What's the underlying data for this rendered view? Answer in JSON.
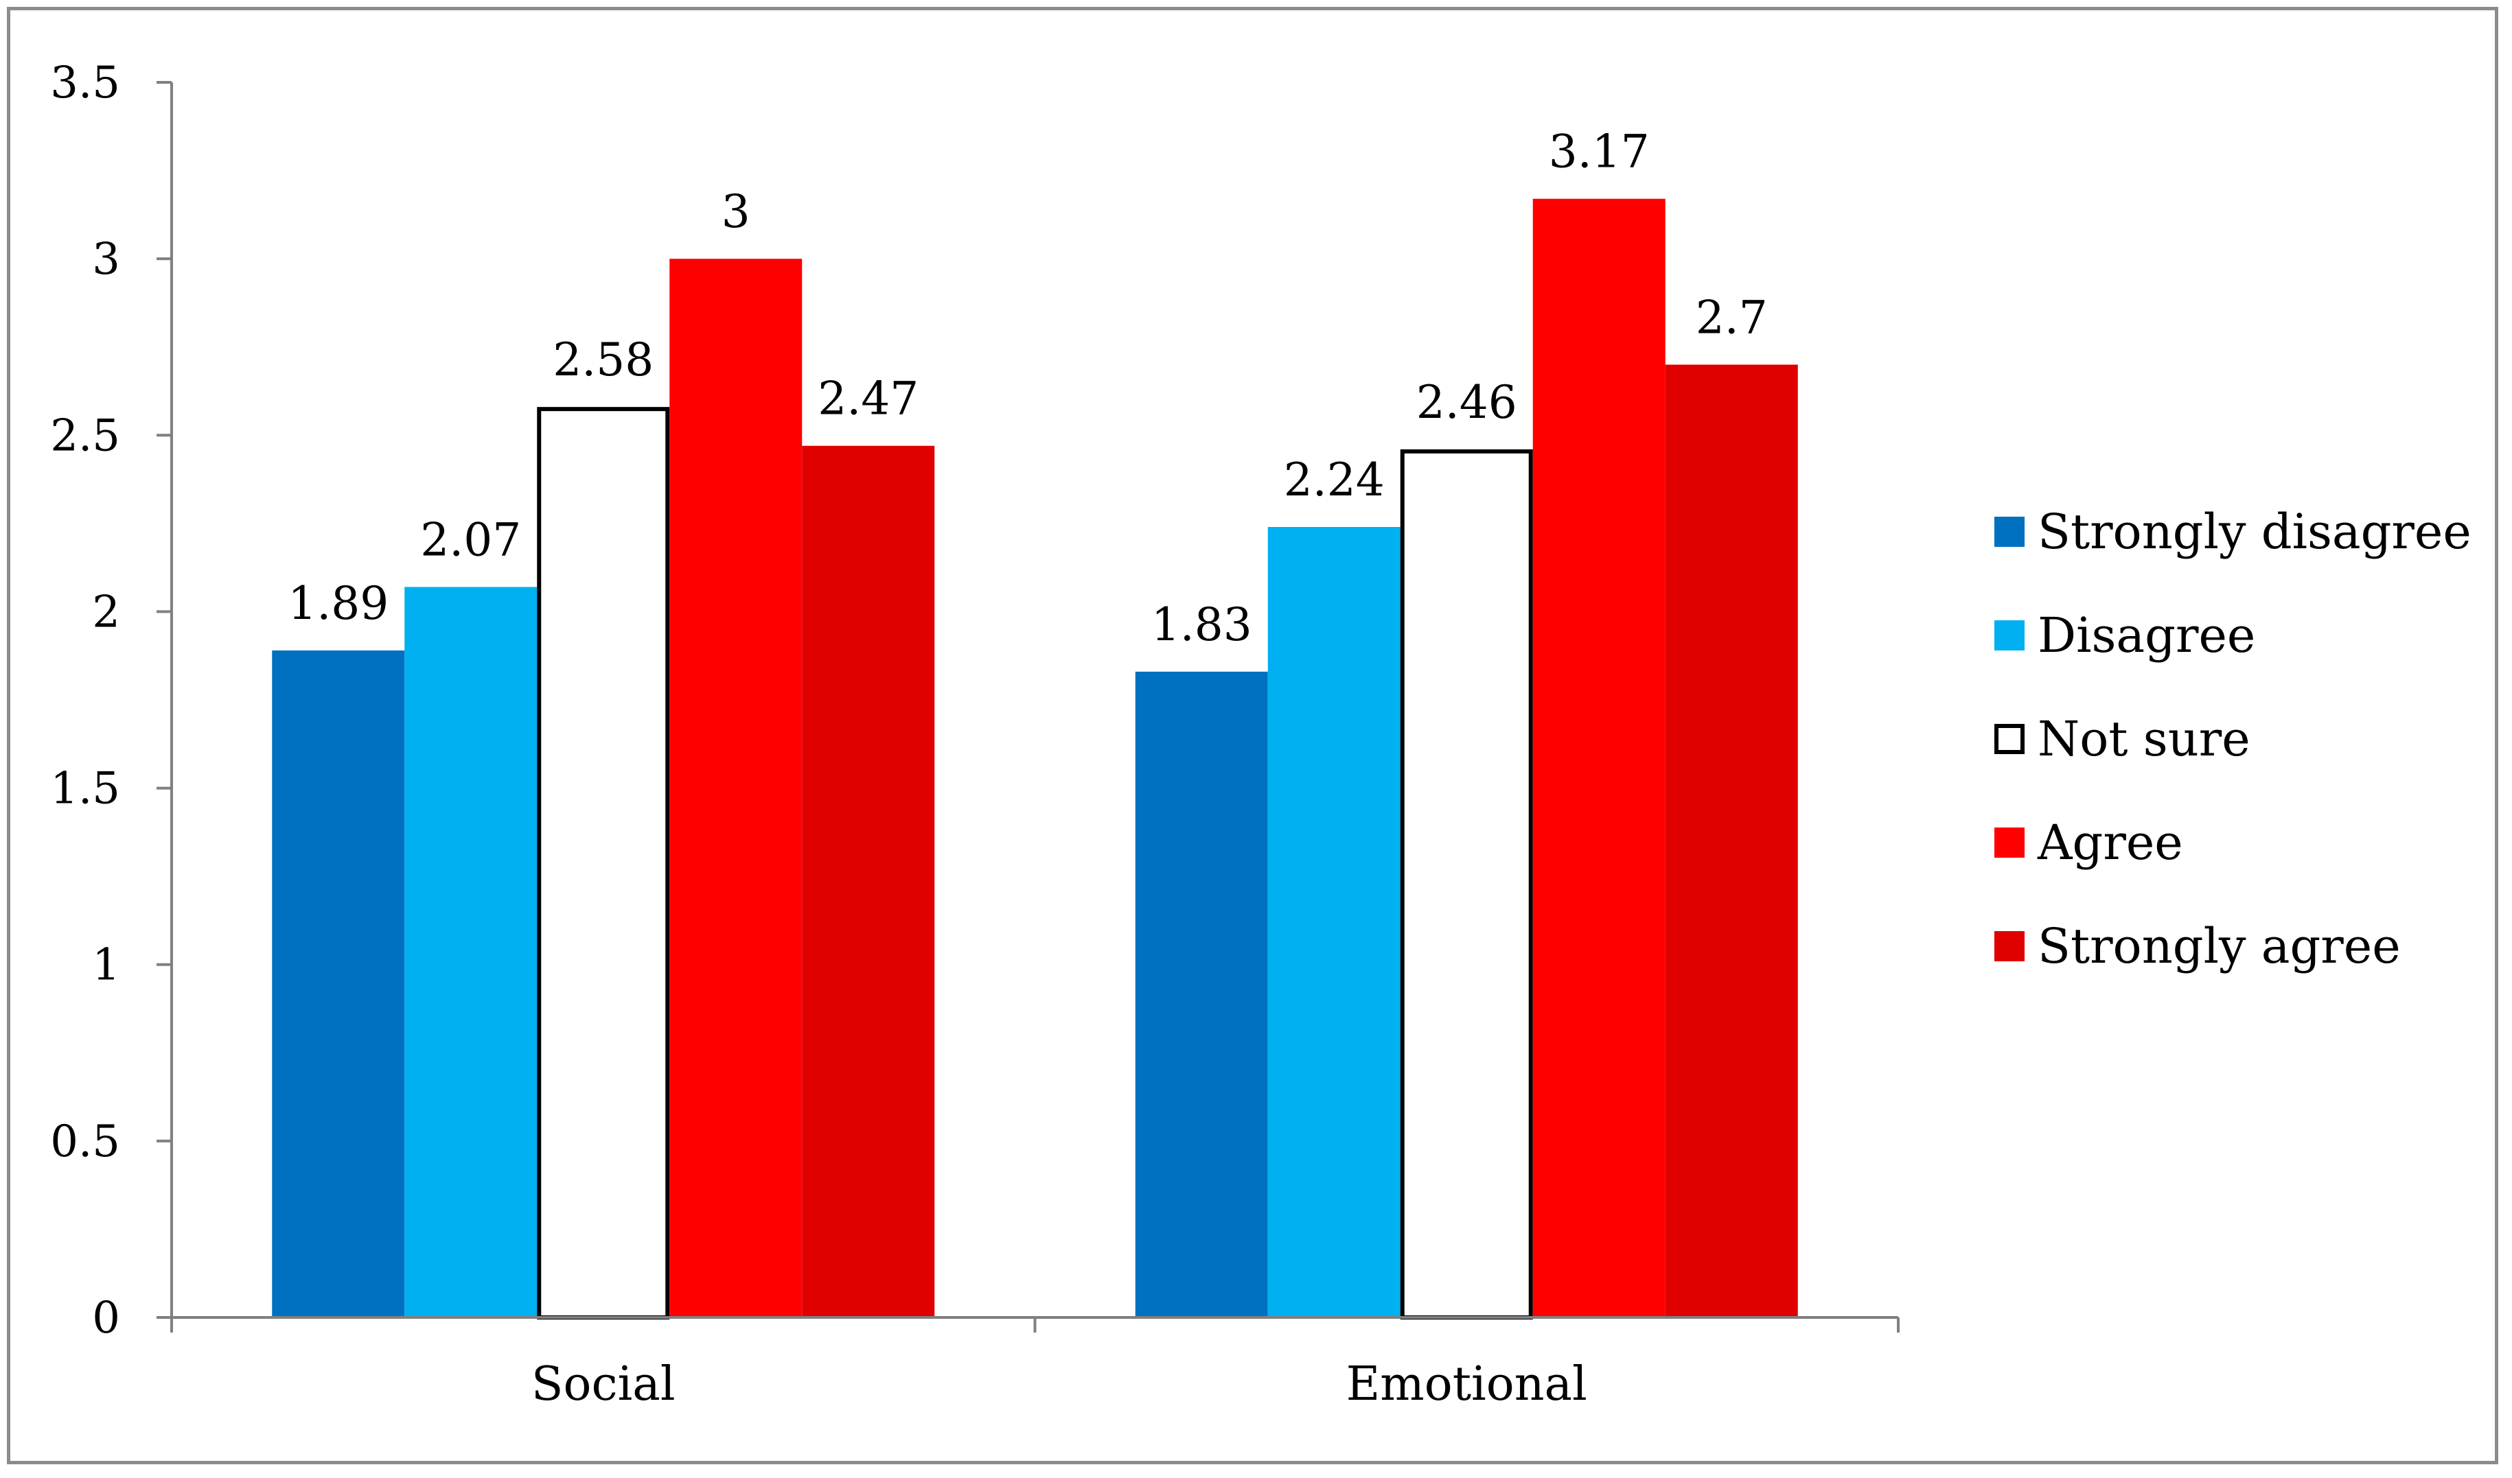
{
  "chart_data": {
    "type": "bar",
    "title": "",
    "xlabel": "",
    "ylabel": "",
    "categories": [
      "Social",
      "Emotional"
    ],
    "ylim": [
      0,
      3.5
    ],
    "yticks": [
      0,
      0.5,
      1,
      1.5,
      2,
      2.5,
      3,
      3.5
    ],
    "ytick_labels": [
      "0",
      "0.5",
      "1",
      "1.5",
      "2",
      "2.5",
      "3",
      "3.5"
    ],
    "grid": false,
    "legend_position": "right",
    "series": [
      {
        "name": "Strongly disagree",
        "color": "#0070c0",
        "outline": false,
        "values": [
          1.89,
          1.83
        ],
        "labels": [
          "1.89",
          "1.83"
        ]
      },
      {
        "name": "Disagree",
        "color": "#00b0f0",
        "outline": false,
        "values": [
          2.07,
          2.24
        ],
        "labels": [
          "2.07",
          "2.24"
        ]
      },
      {
        "name": "Not sure",
        "color": "#ffffff",
        "outline": true,
        "values": [
          2.58,
          2.46
        ],
        "labels": [
          "2.58",
          "2.46"
        ]
      },
      {
        "name": "Agree",
        "color": "#ff0000",
        "outline": false,
        "values": [
          3,
          3.17
        ],
        "labels": [
          "3",
          "3.17"
        ]
      },
      {
        "name": "Strongly agree",
        "color": "#e00000",
        "outline": false,
        "values": [
          2.47,
          2.7
        ],
        "labels": [
          "2.47",
          "2.7"
        ]
      }
    ]
  }
}
